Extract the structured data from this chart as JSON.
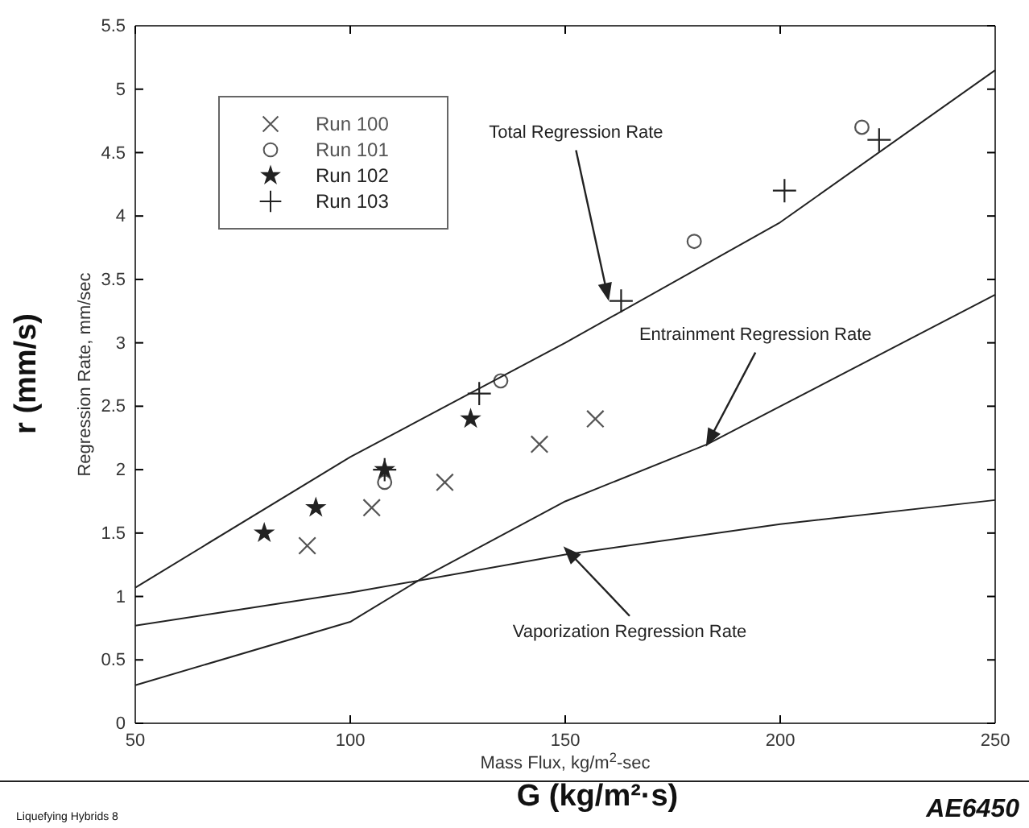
{
  "chart_data": {
    "type": "scatter",
    "xlabel": "Mass Flux, kg/m$^{2}$-sec",
    "ylabel": "Regression Rate, mm/sec",
    "xlim": [
      50,
      250
    ],
    "xticks": [
      50,
      100,
      150,
      200,
      250
    ],
    "ylim": [
      0,
      5.5
    ],
    "yticks": [
      0,
      0.5,
      1,
      1.5,
      2,
      2.5,
      3,
      3.5,
      4,
      4.5,
      5,
      5.5
    ],
    "grid": false,
    "legend": "top left",
    "series": [
      {
        "name": "Run 100",
        "marker": "x",
        "color": "#555555",
        "x": [
          90,
          105,
          122,
          144,
          157
        ],
        "values": [
          1.4,
          1.7,
          1.9,
          2.2,
          2.4
        ]
      },
      {
        "name": "Run 101",
        "marker": "circle",
        "color": "#555555",
        "x": [
          108,
          135,
          180,
          219
        ],
        "values": [
          1.9,
          2.7,
          3.8,
          4.7
        ]
      },
      {
        "name": "Run 102",
        "marker": "star",
        "color": "#222222",
        "x": [
          80,
          92,
          108,
          128
        ],
        "values": [
          1.5,
          1.7,
          2.0,
          2.4
        ]
      },
      {
        "name": "Run 103",
        "color": "#222222",
        "x": [
          108,
          130,
          163,
          201,
          223
        ],
        "values": [
          2.0,
          2.6,
          3.33,
          4.2,
          4.6
        ]
      },
      {
        "type": "line",
        "marker": "none",
        "color": "#222222",
        "x": [
          50,
          100,
          150,
          200,
          250
        ],
        "values": [
          1.07,
          2.1,
          3.0,
          3.95,
          5.15
        ]
      },
      {
        "type": "line",
        "marker": "none",
        "color": "#222222",
        "x": [
          50,
          100,
          118,
          150,
          183,
          250
        ],
        "values": [
          0.3,
          0.8,
          1.17,
          1.75,
          2.2,
          3.38
        ]
      },
      {
        "type": "line",
        "marker": "none",
        "color": "#222222",
        "x": [
          50,
          100,
          150,
          200,
          250
        ],
        "values": [
          0.77,
          1.03,
          1.33,
          1.57,
          1.76
        ]
      }
    ],
    "annotations": [
      {
        "text": "Total Regression Rate",
        "x": 160,
        "y": 3.35
      },
      {
        "text": "Entrainment Regression Rate",
        "x": 183,
        "y": 2.2
      },
      {
        "text": "Vaporization Regression Rate",
        "x": 150,
        "y": 1.38
      },
      "r (mm/s)",
      "G (kg/m²·s)",
      "Liquefying Hybrids 8",
      "AE6450"
    ]
  }
}
